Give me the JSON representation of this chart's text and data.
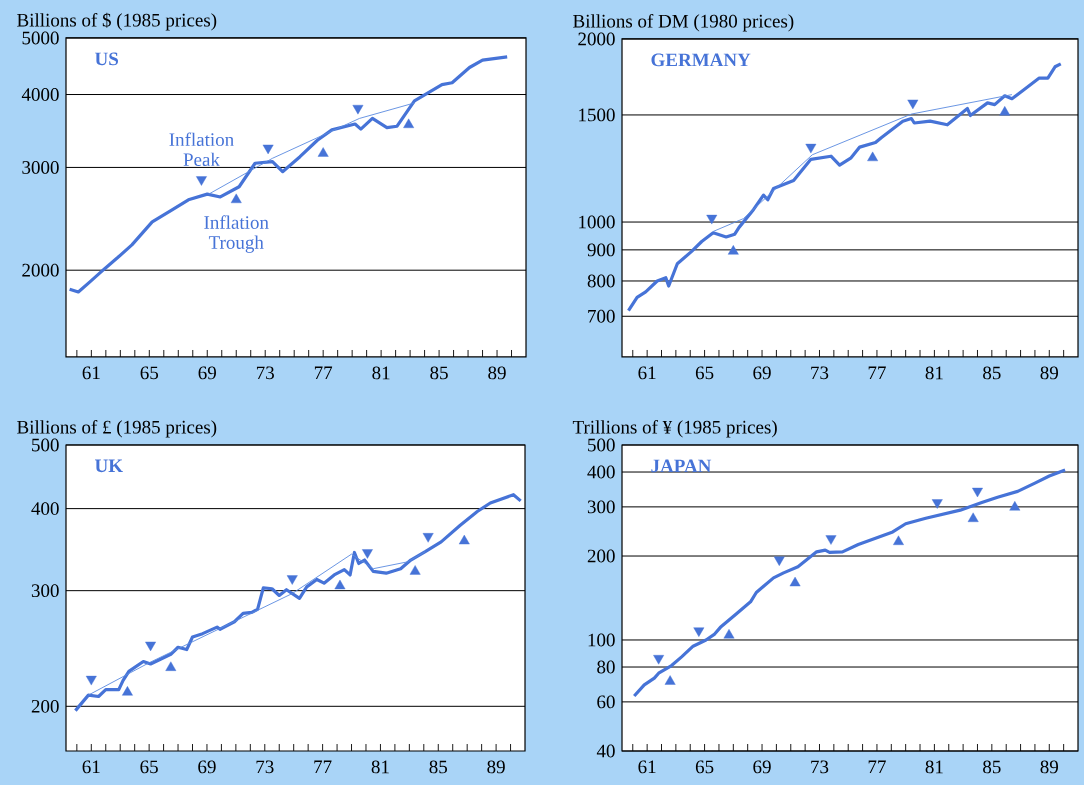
{
  "chart_data": [
    {
      "type": "line",
      "title": "US",
      "ylabel": "Billions of $ (1985 prices)",
      "log": "y",
      "grid": "y",
      "marker": "none",
      "xlim": [
        59.25,
        91
      ],
      "ylim": [
        1420,
        5000
      ],
      "xticks": [
        {
          "value": 60,
          "label": null
        },
        61,
        {
          "value": 62,
          "label": null
        },
        {
          "value": 63,
          "label": null
        },
        {
          "value": 64,
          "label": null
        },
        65,
        {
          "value": 66,
          "label": null
        },
        {
          "value": 67,
          "label": null
        },
        {
          "value": 68,
          "label": null
        },
        69,
        {
          "value": 70,
          "label": null
        },
        {
          "value": 71,
          "label": null
        },
        {
          "value": 72,
          "label": null
        },
        73,
        {
          "value": 74,
          "label": null
        },
        {
          "value": 75,
          "label": null
        },
        {
          "value": 76,
          "label": null
        },
        77,
        {
          "value": 78,
          "label": null
        },
        {
          "value": 79,
          "label": null
        },
        {
          "value": 80,
          "label": null
        },
        81,
        {
          "value": 82,
          "label": null
        },
        {
          "value": 83,
          "label": null
        },
        {
          "value": 84,
          "label": null
        },
        85,
        {
          "value": 86,
          "label": null
        },
        {
          "value": 87,
          "label": null
        },
        {
          "value": 88,
          "label": null
        },
        89,
        {
          "value": 90,
          "label": null
        }
      ],
      "yticks": [
        2000,
        3000,
        4000,
        5000
      ],
      "series": [
        {
          "type": "line",
          "color": "#4673d7",
          "x": [
            59.5,
            60.1,
            60.9,
            61.9,
            62.8,
            63.8,
            65.2,
            66.6,
            67.7,
            69.0,
            69.9,
            71.2,
            72.3,
            73.5,
            74.2,
            75.4,
            76.6,
            77.6,
            79.2,
            79.6,
            80.4,
            81.4,
            82.1,
            83.3,
            85.2,
            85.9,
            87.1,
            88.0,
            89.7
          ],
          "values": [
            1855,
            1835,
            1910,
            2010,
            2100,
            2210,
            2420,
            2540,
            2640,
            2700,
            2670,
            2780,
            3050,
            3070,
            2950,
            3130,
            3340,
            3480,
            3560,
            3490,
            3640,
            3510,
            3530,
            3900,
            4160,
            4190,
            4450,
            4580,
            4640
          ]
        },
        {
          "type": "line",
          "color": "#5a8ae0",
          "x": [
            69.1,
            73.5,
            79.5,
            83.3
          ],
          "values": [
            2700,
            3110,
            3640,
            3870
          ]
        },
        {
          "type": "scatter",
          "marker": "triangle-down",
          "color": "#4673d7",
          "x": [
            68.6,
            73.2,
            79.4
          ],
          "values": [
            2860,
            3240,
            3790
          ]
        },
        {
          "type": "scatter",
          "marker": "triangle",
          "color": "#4673d7",
          "x": [
            71.0,
            77.0,
            82.9
          ],
          "values": [
            2640,
            3170,
            3550
          ]
        }
      ],
      "annotations": [
        {
          "text": "Inflation Peak",
          "x": 68.6,
          "y": 2860
        },
        {
          "text": "Inflation Trough",
          "x": 71.0,
          "y": 2640
        }
      ]
    },
    {
      "type": "line",
      "title": "GERMANY",
      "ylabel": "Billions of DM (1980 prices)",
      "log": "y",
      "grid": "y",
      "marker": "none",
      "xlim": [
        59.25,
        91
      ],
      "ylim": [
        600,
        2000
      ],
      "xticks": [
        {
          "value": 60,
          "label": null
        },
        61,
        {
          "value": 62,
          "label": null
        },
        {
          "value": 63,
          "label": null
        },
        {
          "value": 64,
          "label": null
        },
        65,
        {
          "value": 66,
          "label": null
        },
        {
          "value": 67,
          "label": null
        },
        {
          "value": 68,
          "label": null
        },
        69,
        {
          "value": 70,
          "label": null
        },
        {
          "value": 71,
          "label": null
        },
        {
          "value": 72,
          "label": null
        },
        73,
        {
          "value": 74,
          "label": null
        },
        {
          "value": 75,
          "label": null
        },
        {
          "value": 76,
          "label": null
        },
        77,
        {
          "value": 78,
          "label": null
        },
        {
          "value": 79,
          "label": null
        },
        {
          "value": 80,
          "label": null
        },
        81,
        {
          "value": 82,
          "label": null
        },
        {
          "value": 83,
          "label": null
        },
        {
          "value": 84,
          "label": null
        },
        85,
        {
          "value": 86,
          "label": null
        },
        {
          "value": 87,
          "label": null
        },
        {
          "value": 88,
          "label": null
        },
        89,
        {
          "value": 90,
          "label": null
        }
      ],
      "yticks": [
        700,
        800,
        900,
        1000,
        1500,
        2000
      ],
      "series": [
        {
          "type": "line",
          "color": "#4673d7",
          "x": [
            59.7,
            60.3,
            60.9,
            61.7,
            62.3,
            62.5,
            63.1,
            64.1,
            64.8,
            65.6,
            66.5,
            67.1,
            67.4,
            68.4,
            69.1,
            69.4,
            69.8,
            71.2,
            72.4,
            73.8,
            74.4,
            75.2,
            75.8,
            76.9,
            77.3,
            78.8,
            79.4,
            79.6,
            80.7,
            81.9,
            83.3,
            83.5,
            84.7,
            85.2,
            85.9,
            86.4,
            87.3,
            88.3,
            88.9,
            89.4,
            89.8
          ],
          "values": [
            715,
            752,
            768,
            800,
            810,
            785,
            854,
            895,
            929,
            960,
            945,
            955,
            980,
            1048,
            1107,
            1088,
            1135,
            1170,
            1268,
            1283,
            1240,
            1275,
            1328,
            1351,
            1376,
            1465,
            1480,
            1455,
            1465,
            1445,
            1537,
            1497,
            1570,
            1560,
            1613,
            1595,
            1655,
            1725,
            1725,
            1800,
            1820
          ]
        },
        {
          "type": "line",
          "color": "#5a8ae0",
          "x": [
            65.6,
            67.7,
            72.5,
            79.4,
            86.4
          ],
          "values": [
            965,
            1013,
            1290,
            1505,
            1620
          ]
        },
        {
          "type": "scatter",
          "marker": "triangle-down",
          "color": "#4673d7",
          "x": [
            65.5,
            72.4,
            79.5
          ],
          "values": [
            1015,
            1328,
            1570
          ]
        },
        {
          "type": "scatter",
          "marker": "triangle",
          "color": "#4673d7",
          "x": [
            67.0,
            76.7,
            85.9
          ],
          "values": [
            895,
            1275,
            1515
          ]
        }
      ]
    },
    {
      "type": "line",
      "title": "UK",
      "ylabel": "Billions of £ (1985 prices)",
      "log": "y",
      "grid": "y",
      "marker": "none",
      "xlim": [
        59.25,
        91
      ],
      "ylim": [
        171,
        500
      ],
      "xticks": [
        {
          "value": 60,
          "label": null
        },
        61,
        {
          "value": 62,
          "label": null
        },
        {
          "value": 63,
          "label": null
        },
        {
          "value": 64,
          "label": null
        },
        65,
        {
          "value": 66,
          "label": null
        },
        {
          "value": 67,
          "label": null
        },
        {
          "value": 68,
          "label": null
        },
        69,
        {
          "value": 70,
          "label": null
        },
        {
          "value": 71,
          "label": null
        },
        {
          "value": 72,
          "label": null
        },
        73,
        {
          "value": 74,
          "label": null
        },
        {
          "value": 75,
          "label": null
        },
        {
          "value": 76,
          "label": null
        },
        77,
        {
          "value": 78,
          "label": null
        },
        {
          "value": 79,
          "label": null
        },
        {
          "value": 80,
          "label": null
        },
        81,
        {
          "value": 82,
          "label": null
        },
        {
          "value": 83,
          "label": null
        },
        {
          "value": 84,
          "label": null
        },
        85,
        {
          "value": 86,
          "label": null
        },
        {
          "value": 87,
          "label": null
        },
        {
          "value": 88,
          "label": null
        },
        89,
        {
          "value": 90,
          "label": null
        }
      ],
      "yticks": [
        200,
        300,
        400,
        500
      ],
      "series": [
        {
          "type": "line",
          "color": "#4673d7",
          "x": [
            59.9,
            60.8,
            61.5,
            62.0,
            62.9,
            63.2,
            63.6,
            64.6,
            65.1,
            66.5,
            67.0,
            67.6,
            68.0,
            68.7,
            69.7,
            69.9,
            70.9,
            71.5,
            72.1,
            72.5,
            72.9,
            73.5,
            74.0,
            74.5,
            75.4,
            75.9,
            76.6,
            77.1,
            77.8,
            78.5,
            78.9,
            79.2,
            79.5,
            79.9,
            80.5,
            81.4,
            82.4,
            83.1,
            84.1,
            85.2,
            86.5,
            87.7,
            88.6,
            90.2,
            90.7
          ],
          "values": [
            197,
            208,
            207,
            212,
            212,
            219,
            226,
            234,
            232,
            240,
            246,
            244,
            255,
            258,
            264,
            262,
            269,
            277,
            278,
            281,
            303,
            302,
            295,
            301,
            292,
            304,
            312,
            308,
            317,
            323,
            317,
            343,
            330,
            334,
            321,
            319,
            324,
            334,
            344,
            356,
            377,
            396,
            408,
            420,
            411
          ]
        },
        {
          "type": "line",
          "color": "#5a8ae0",
          "x": [
            60.8,
            65.0,
            74.9,
            79.0,
            80.5,
            82.9,
            84.1
          ],
          "values": [
            208,
            233,
            297,
            341,
            324,
            332,
            344
          ]
        },
        {
          "type": "scatter",
          "marker": "triangle-down",
          "color": "#4673d7",
          "x": [
            61.0,
            65.1,
            74.9,
            80.1,
            84.3
          ],
          "values": [
            220,
            248,
            313,
            343,
            363
          ]
        },
        {
          "type": "scatter",
          "marker": "triangle",
          "color": "#4673d7",
          "x": [
            63.5,
            66.5,
            78.2,
            83.4,
            86.8
          ],
          "values": [
            210,
            229,
            305,
            321,
            357
          ]
        }
      ]
    },
    {
      "type": "line",
      "title": "JAPAN",
      "ylabel": "Trillions of ¥ (1985 prices)",
      "log": "y",
      "grid": "y",
      "marker": "none",
      "xlim": [
        59.25,
        91
      ],
      "ylim": [
        40,
        500
      ],
      "xticks": [
        {
          "value": 60,
          "label": null
        },
        61,
        {
          "value": 62,
          "label": null
        },
        {
          "value": 63,
          "label": null
        },
        {
          "value": 64,
          "label": null
        },
        65,
        {
          "value": 66,
          "label": null
        },
        {
          "value": 67,
          "label": null
        },
        {
          "value": 68,
          "label": null
        },
        69,
        {
          "value": 70,
          "label": null
        },
        {
          "value": 71,
          "label": null
        },
        {
          "value": 72,
          "label": null
        },
        73,
        {
          "value": 74,
          "label": null
        },
        {
          "value": 75,
          "label": null
        },
        {
          "value": 76,
          "label": null
        },
        77,
        {
          "value": 78,
          "label": null
        },
        {
          "value": 79,
          "label": null
        },
        {
          "value": 80,
          "label": null
        },
        81,
        {
          "value": 82,
          "label": null
        },
        {
          "value": 83,
          "label": null
        },
        {
          "value": 84,
          "label": null
        },
        85,
        {
          "value": 86,
          "label": null
        },
        {
          "value": 87,
          "label": null
        },
        {
          "value": 88,
          "label": null
        },
        89,
        {
          "value": 90,
          "label": null
        }
      ],
      "yticks": [
        40,
        60,
        80,
        100,
        200,
        300,
        400,
        500
      ],
      "series": [
        {
          "type": "line",
          "color": "#4673d7",
          "x": [
            60.1,
            60.8,
            61.5,
            61.8,
            62.7,
            63.4,
            64.2,
            65.1,
            65.7,
            66.1,
            67.2,
            68.2,
            68.6,
            69.8,
            70.5,
            71.5,
            72.8,
            73.4,
            73.7,
            74.6,
            75.7,
            78.1,
            79.0,
            80.4,
            82.8,
            84.3,
            85.4,
            86.8,
            88.0,
            89.0,
            90.1
          ],
          "values": [
            63,
            69,
            73,
            76,
            81,
            87,
            95,
            100,
            105,
            111,
            124,
            137,
            148,
            167,
            174,
            183,
            207,
            210,
            206,
            207,
            220,
            244,
            261,
            273,
            292,
            311,
            325,
            341,
            365,
            387,
            407
          ]
        },
        {
          "type": "scatter",
          "marker": "triangle-down",
          "color": "#4673d7",
          "x": [
            61.8,
            64.6,
            70.2,
            73.8,
            81.2,
            84.0
          ],
          "values": [
            86,
            108,
            194,
            231,
            311,
            342
          ]
        },
        {
          "type": "scatter",
          "marker": "triangle",
          "color": "#4673d7",
          "x": [
            62.6,
            66.7,
            71.3,
            78.5,
            83.7,
            86.6
          ],
          "values": [
            71,
            104,
            160,
            225,
            272,
            299
          ]
        }
      ]
    }
  ]
}
